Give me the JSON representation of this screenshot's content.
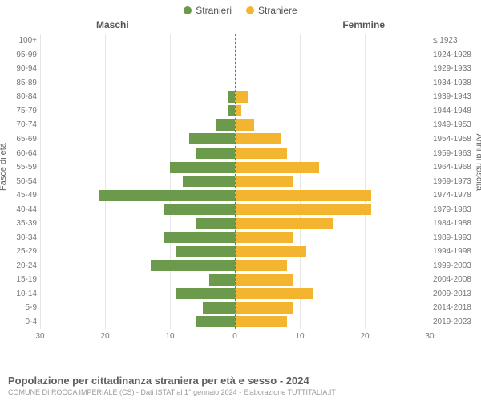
{
  "legend": {
    "male": {
      "label": "Stranieri",
      "color": "#6b9a4d"
    },
    "female": {
      "label": "Straniere",
      "color": "#f3b530"
    }
  },
  "header": {
    "left_label": "Maschi",
    "right_label": "Femmine"
  },
  "axes": {
    "y_left_title": "Fasce di età",
    "y_right_title": "Anni di nascita",
    "x_max": 30,
    "x_ticks": [
      30,
      20,
      10,
      0,
      10,
      20,
      30
    ]
  },
  "colors": {
    "grid": "#e6e6e6",
    "center_line": "#8a7a2d",
    "background": "#ffffff",
    "text": "#606060",
    "subtext": "#9a9a9a"
  },
  "age_bands": [
    {
      "age": "100+",
      "birth": "≤ 1923",
      "male": 0,
      "female": 0
    },
    {
      "age": "95-99",
      "birth": "1924-1928",
      "male": 0,
      "female": 0
    },
    {
      "age": "90-94",
      "birth": "1929-1933",
      "male": 0,
      "female": 0
    },
    {
      "age": "85-89",
      "birth": "1934-1938",
      "male": 0,
      "female": 0
    },
    {
      "age": "80-84",
      "birth": "1939-1943",
      "male": 1,
      "female": 2
    },
    {
      "age": "75-79",
      "birth": "1944-1948",
      "male": 1,
      "female": 1
    },
    {
      "age": "70-74",
      "birth": "1949-1953",
      "male": 3,
      "female": 3
    },
    {
      "age": "65-69",
      "birth": "1954-1958",
      "male": 7,
      "female": 7
    },
    {
      "age": "60-64",
      "birth": "1959-1963",
      "male": 6,
      "female": 8
    },
    {
      "age": "55-59",
      "birth": "1964-1968",
      "male": 10,
      "female": 13
    },
    {
      "age": "50-54",
      "birth": "1969-1973",
      "male": 8,
      "female": 9
    },
    {
      "age": "45-49",
      "birth": "1974-1978",
      "male": 21,
      "female": 21
    },
    {
      "age": "40-44",
      "birth": "1979-1983",
      "male": 11,
      "female": 21
    },
    {
      "age": "35-39",
      "birth": "1984-1988",
      "male": 6,
      "female": 15
    },
    {
      "age": "30-34",
      "birth": "1989-1993",
      "male": 11,
      "female": 9
    },
    {
      "age": "25-29",
      "birth": "1994-1998",
      "male": 9,
      "female": 11
    },
    {
      "age": "20-24",
      "birth": "1999-2003",
      "male": 13,
      "female": 8
    },
    {
      "age": "15-19",
      "birth": "2004-2008",
      "male": 4,
      "female": 9
    },
    {
      "age": "10-14",
      "birth": "2009-2013",
      "male": 9,
      "female": 12
    },
    {
      "age": "5-9",
      "birth": "2014-2018",
      "male": 5,
      "female": 9
    },
    {
      "age": "0-4",
      "birth": "2019-2023",
      "male": 6,
      "female": 8
    }
  ],
  "footer": {
    "title": "Popolazione per cittadinanza straniera per età e sesso - 2024",
    "subtitle": "COMUNE DI ROCCA IMPERIALE (CS) - Dati ISTAT al 1° gennaio 2024 - Elaborazione TUTTITALIA.IT"
  }
}
